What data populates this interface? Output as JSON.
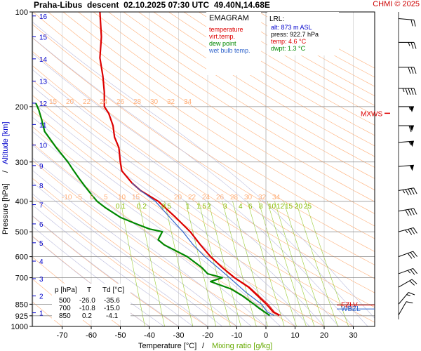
{
  "header": {
    "station": "Praha-Libus",
    "mode": "descent",
    "datetime": "02.10.2025 07:30 UTC",
    "coords": "49.40N,14.68E",
    "copyright": "CHMI © 2025"
  },
  "legend": {
    "title": "EMAGRAM",
    "items": [
      {
        "label": "temperature",
        "color": "#dd0000"
      },
      {
        "label": "virt.temp.",
        "color": "#dd0000"
      },
      {
        "label": "dew point",
        "color": "#008800"
      },
      {
        "label": "wet bulb temp.",
        "color": "#3366cc"
      }
    ]
  },
  "lrl": {
    "title": "LRL:",
    "alt": "alt: 873 m ASL",
    "press": "press: 922.7 hPa",
    "temp": "temp: 4.6 °C",
    "dwpt": "dwpt: 1.3 °C"
  },
  "table": {
    "headers": [
      "p [hPa]",
      "T",
      "Td [°C]"
    ],
    "rows": [
      [
        "500",
        "-26.0",
        "-35.6"
      ],
      [
        "700",
        "-10.8",
        "-15.0"
      ],
      [
        "850",
        "0.2",
        "-4.1"
      ]
    ]
  },
  "markers": {
    "mxws": "MXWS",
    "fzlv": "FZLV",
    "wbzl": "WBZL"
  },
  "colors": {
    "temperature": "#dd0000",
    "dewpoint": "#008800",
    "wetbulb": "#3366cc",
    "dry_adiabat": "#ffb07a",
    "moist_adiabat": "#bbbbdd",
    "mixing_ratio": "#99cc33",
    "altitude": "#0000cc",
    "header_red": "#cc0000"
  },
  "chart_data": {
    "type": "line",
    "chart_kind": "emagram",
    "xlabel": "Temperature [°C]",
    "xlabel_separator": "/",
    "xlabel2": "Mixing ratio [g/kg]",
    "ylabel": "Pressure [hPa]",
    "ylabel_separator": "/",
    "ylabel2": "Altitude [km]",
    "ylog": true,
    "xlim": [
      -80,
      40
    ],
    "ylim": [
      1000,
      100
    ],
    "grid": true,
    "x_ticks": [
      -70,
      -60,
      -50,
      -40,
      -30,
      -20,
      -10,
      0,
      10,
      20,
      30
    ],
    "y_ticks": [
      100,
      200,
      300,
      400,
      500,
      600,
      700,
      850,
      925,
      1000
    ],
    "altitude_ticks_km": [
      {
        "km": 1,
        "p": 905
      },
      {
        "km": 2,
        "p": 800
      },
      {
        "km": 3,
        "p": 705
      },
      {
        "km": 4,
        "p": 620
      },
      {
        "km": 5,
        "p": 542
      },
      {
        "km": 6,
        "p": 472
      },
      {
        "km": 7,
        "p": 410
      },
      {
        "km": 8,
        "p": 356
      },
      {
        "km": 9,
        "p": 308
      },
      {
        "km": 10,
        "p": 265
      },
      {
        "km": 11,
        "p": 228
      },
      {
        "km": 12,
        "p": 195
      },
      {
        "km": 13,
        "p": 166
      },
      {
        "km": 14,
        "p": 141
      },
      {
        "km": 15,
        "p": 120
      },
      {
        "km": 16,
        "p": 103
      }
    ],
    "dry_adiabat_labels": [
      "-10",
      "-5",
      "0",
      "5",
      "10",
      "15",
      "20",
      "22",
      "24",
      "26",
      "28",
      "30",
      "32",
      "34"
    ],
    "dry_adiabat_labels_upper": [
      "15",
      "20",
      "22",
      "24",
      "26",
      "28",
      "30",
      "32",
      "34"
    ],
    "mixing_ratio_labels": [
      "0.1",
      "0.2",
      "0.5",
      "1",
      "1.5",
      "2",
      "3",
      "4",
      "6",
      "8",
      "10",
      "12",
      "15",
      "20",
      "25"
    ],
    "series": [
      {
        "name": "temperature",
        "points": [
          [
            4.6,
            922.7
          ],
          [
            2.5,
            900
          ],
          [
            0.2,
            850
          ],
          [
            -6,
            750
          ],
          [
            -10.8,
            700
          ],
          [
            -15,
            650
          ],
          [
            -19,
            600
          ],
          [
            -22.5,
            550
          ],
          [
            -26,
            500
          ],
          [
            -31,
            450
          ],
          [
            -37,
            400
          ],
          [
            -43,
            370
          ],
          [
            -46,
            350
          ],
          [
            -49.5,
            320
          ],
          [
            -50,
            300
          ],
          [
            -50.5,
            270
          ],
          [
            -52,
            250
          ],
          [
            -52.5,
            230
          ],
          [
            -54,
            210
          ],
          [
            -55.5,
            200
          ],
          [
            -55.5,
            180
          ],
          [
            -56,
            160
          ],
          [
            -57,
            140
          ],
          [
            -56.5,
            120
          ],
          [
            -57,
            100
          ]
        ]
      },
      {
        "name": "virt.temp.",
        "points": [
          [
            5.2,
            922.7
          ],
          [
            3.0,
            900
          ],
          [
            0.8,
            850
          ],
          [
            -5.6,
            750
          ],
          [
            -10.5,
            700
          ],
          [
            -14.8,
            650
          ],
          [
            -18.9,
            600
          ],
          [
            -22.4,
            550
          ],
          [
            -25.9,
            500
          ],
          [
            -30.9,
            450
          ],
          [
            -37,
            400
          ],
          [
            -43,
            370
          ],
          [
            -46,
            350
          ],
          [
            -49.5,
            320
          ],
          [
            -50,
            300
          ],
          [
            -50.5,
            270
          ],
          [
            -52,
            250
          ],
          [
            -52.5,
            230
          ],
          [
            -54,
            210
          ],
          [
            -55.5,
            200
          ],
          [
            -55.5,
            180
          ],
          [
            -56,
            160
          ],
          [
            -57,
            140
          ],
          [
            -56.5,
            120
          ],
          [
            -57,
            100
          ]
        ]
      },
      {
        "name": "dew point",
        "points": [
          [
            1.3,
            922.7
          ],
          [
            -2,
            880
          ],
          [
            -4.1,
            850
          ],
          [
            -8,
            800
          ],
          [
            -12,
            760
          ],
          [
            -19,
            720
          ],
          [
            -15,
            700
          ],
          [
            -20,
            680
          ],
          [
            -22,
            650
          ],
          [
            -27,
            600
          ],
          [
            -35,
            550
          ],
          [
            -37,
            530
          ],
          [
            -35.6,
            500
          ],
          [
            -40,
            490
          ],
          [
            -45,
            470
          ],
          [
            -50,
            450
          ],
          [
            -55,
            420
          ],
          [
            -58,
            400
          ],
          [
            -60,
            380
          ],
          [
            -62,
            360
          ],
          [
            -64,
            340
          ],
          [
            -66,
            320
          ],
          [
            -68,
            300
          ],
          [
            -72,
            270
          ],
          [
            -76,
            240
          ],
          [
            -77,
            220
          ],
          [
            -78,
            205
          ],
          [
            -79,
            195
          ]
        ]
      },
      {
        "name": "wet bulb temp.",
        "points": [
          [
            2.8,
            922.7
          ],
          [
            0.5,
            900
          ],
          [
            -1.5,
            850
          ],
          [
            -6.8,
            780
          ],
          [
            -12.5,
            700
          ],
          [
            -16.5,
            650
          ],
          [
            -21,
            600
          ],
          [
            -25,
            550
          ],
          [
            -28.5,
            500
          ],
          [
            -33,
            450
          ],
          [
            -38,
            400
          ],
          [
            -43,
            370
          ],
          [
            -46,
            350
          ]
        ]
      }
    ],
    "wind_barbs": [
      {
        "p": 920,
        "dir": 210,
        "kt": 10
      },
      {
        "p": 850,
        "dir": 220,
        "kt": 15
      },
      {
        "p": 750,
        "dir": 240,
        "kt": 20
      },
      {
        "p": 680,
        "dir": 250,
        "kt": 25
      },
      {
        "p": 600,
        "dir": 250,
        "kt": 30
      },
      {
        "p": 500,
        "dir": 255,
        "kt": 35
      },
      {
        "p": 430,
        "dir": 260,
        "kt": 40
      },
      {
        "p": 370,
        "dir": 260,
        "kt": 45
      },
      {
        "p": 310,
        "dir": 265,
        "kt": 50
      },
      {
        "p": 260,
        "dir": 265,
        "kt": 55
      },
      {
        "p": 230,
        "dir": 270,
        "kt": 60
      },
      {
        "p": 200,
        "dir": 270,
        "kt": 55
      },
      {
        "p": 175,
        "dir": 270,
        "kt": 45
      },
      {
        "p": 150,
        "dir": 270,
        "kt": 30
      },
      {
        "p": 125,
        "dir": 270,
        "kt": 25
      },
      {
        "p": 105,
        "dir": 275,
        "kt": 20
      }
    ],
    "level_markers": [
      {
        "name": "MXWS",
        "p": 210
      },
      {
        "name": "FZLV",
        "p": 855
      },
      {
        "name": "WBZL",
        "p": 880
      }
    ]
  }
}
